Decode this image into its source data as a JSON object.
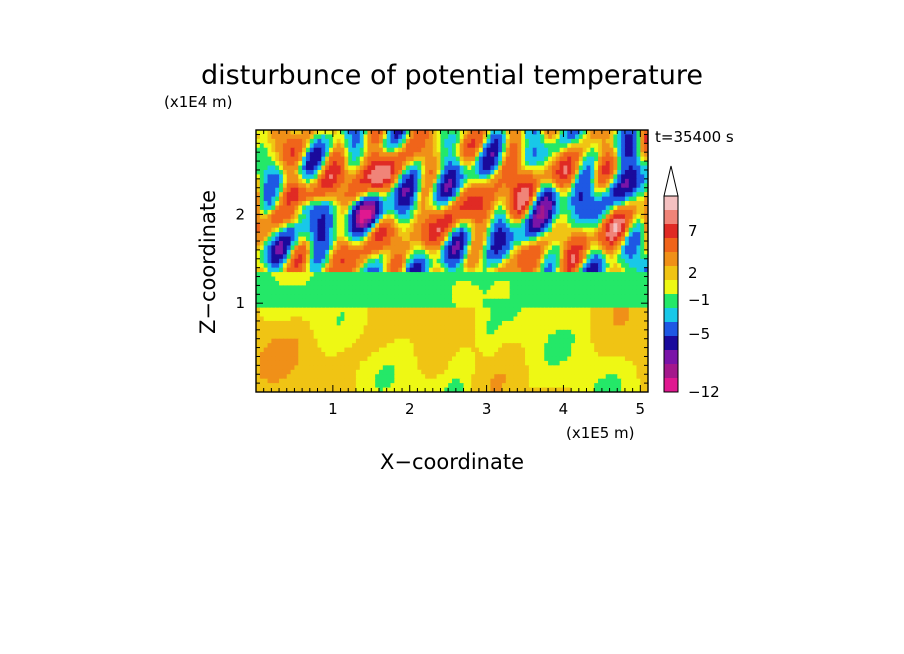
{
  "chart_data": {
    "type": "heatmap",
    "title": "disturbunce of potential temperature",
    "xlabel": "X−coordinate",
    "ylabel": "Z−coordinate",
    "x_unit_label": "(x1E5 m)",
    "y_unit_label": "(x1E4 m)",
    "time_label": "t=35400 s",
    "xlim": [
      0.0,
      5.1
    ],
    "ylim": [
      0.0,
      2.95
    ],
    "x_ticks": [
      "1",
      "2",
      "3",
      "4",
      "5"
    ],
    "y_ticks": [
      "1",
      "2"
    ],
    "colorbar": {
      "label_ticks": [
        "7",
        "2",
        "−1",
        "−5",
        "−12"
      ],
      "label_values": [
        7,
        2,
        -1,
        -5,
        -12
      ],
      "colors": [
        "#e01890",
        "#a4188c",
        "#7a14a8",
        "#1a0a9c",
        "#1e58e4",
        "#18c8e8",
        "#24e868",
        "#eef814",
        "#f0c414",
        "#f09018",
        "#f0641a",
        "#e02a24",
        "#f08478",
        "#f4c0c0"
      ],
      "extend": "max"
    }
  },
  "colors": {
    "plot_background": "#f2f810",
    "axis_color": "#000000"
  }
}
